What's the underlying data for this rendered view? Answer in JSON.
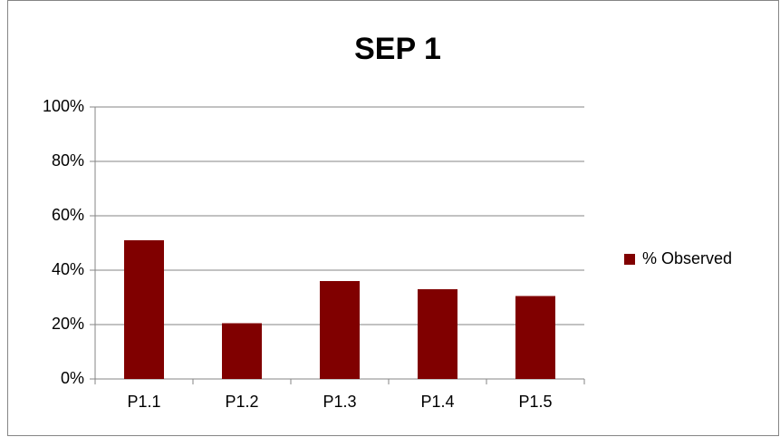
{
  "chart_data": {
    "type": "bar",
    "title": "SEP 1",
    "categories": [
      "P1.1",
      "P1.2",
      "P1.3",
      "P1.4",
      "P1.5"
    ],
    "series": [
      {
        "name": "% Observed",
        "color": "#800000",
        "values": [
          51,
          20.5,
          36,
          33,
          30.5
        ]
      }
    ],
    "ylim": [
      0,
      100
    ],
    "yticks": [
      {
        "value": 0,
        "label": "0%"
      },
      {
        "value": 20,
        "label": "20%"
      },
      {
        "value": 40,
        "label": "40%"
      },
      {
        "value": 60,
        "label": "60%"
      },
      {
        "value": 80,
        "label": "80%"
      },
      {
        "value": 100,
        "label": "100%"
      }
    ],
    "grid": true,
    "legend": "right"
  }
}
